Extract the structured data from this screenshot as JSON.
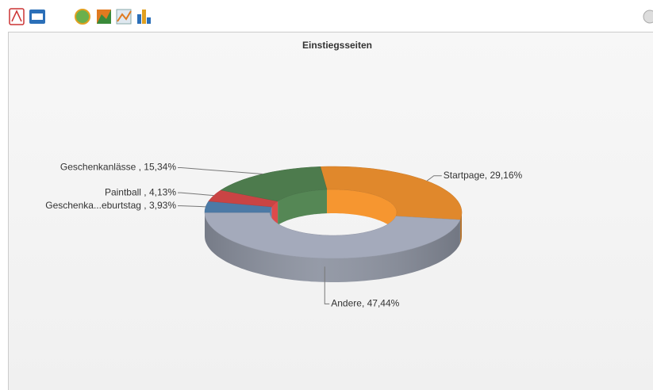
{
  "chart_data": {
    "type": "donut3d",
    "title": "Einstiegsseiten",
    "values": [
      29.16,
      47.44,
      3.93,
      4.13,
      15.34
    ],
    "value_labels": [
      "Startpage, 29,16%",
      "Andere, 47,44%",
      "Geschenka...eburtstag , 3,93%",
      "Paintball , 4,13%",
      "Geschenkanlässe , 15,34%"
    ],
    "colors": [
      "#e0882c",
      "#a4aabb",
      "#4c7aa6",
      "#c94444",
      "#4d7b4d"
    ]
  }
}
